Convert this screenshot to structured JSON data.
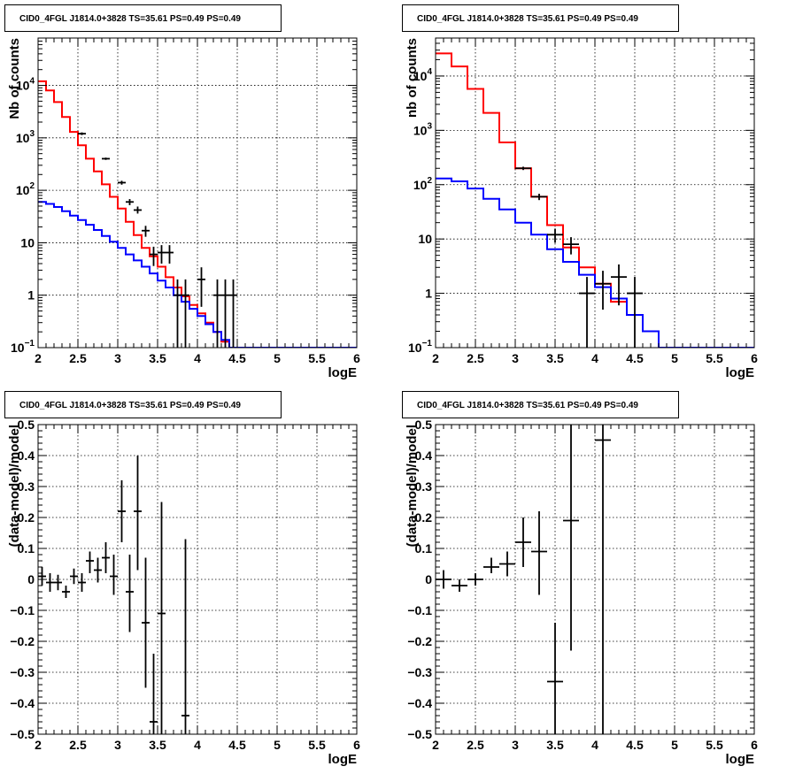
{
  "chart_data": [
    {
      "type": "line",
      "title": "CID0_4FGL J1814.0+3828 TS=35.61 PS=0.49 PS=0.49",
      "xlabel": "logE",
      "ylabel": "Nb of counts",
      "xlim": [
        2,
        6
      ],
      "ylim": [
        0.1,
        80000
      ],
      "yscale": "log",
      "grid": true,
      "x_ticks": [
        "2",
        "2.5",
        "3",
        "3.5",
        "4",
        "4.5",
        "5",
        "5.5",
        "6"
      ],
      "y_ticks": [
        {
          "value": 0.1,
          "label": "10",
          "exp": "−1"
        },
        {
          "value": 1,
          "label": "1",
          "exp": ""
        },
        {
          "value": 10,
          "label": "10",
          "exp": ""
        },
        {
          "value": 100,
          "label": "10",
          "exp": "2"
        },
        {
          "value": 1000,
          "label": "10",
          "exp": "3"
        },
        {
          "value": 10000,
          "label": "10",
          "exp": "4"
        }
      ],
      "bin_edges": [
        2.0,
        2.1,
        2.2,
        2.3,
        2.4,
        2.5,
        2.6,
        2.7,
        2.8,
        2.9,
        3.0,
        3.1,
        3.2,
        3.3,
        3.4,
        3.5,
        3.6,
        3.7,
        3.8,
        3.9,
        4.0,
        4.1,
        4.2,
        4.3,
        4.4,
        4.5,
        4.6,
        4.7,
        4.8,
        4.9,
        5.0,
        5.1,
        5.2,
        5.3,
        5.4,
        5.5,
        5.6,
        5.7,
        5.8,
        5.9,
        6.0
      ],
      "series": [
        {
          "color": "#ff0000",
          "style": "step",
          "values": [
            12000,
            8000,
            4800,
            2500,
            1300,
            720,
            400,
            230,
            130,
            75,
            45,
            25,
            14,
            8,
            5.5,
            3.5,
            2.2,
            1.4,
            0.95,
            0.65,
            0.45,
            0.3,
            0.2,
            0.13,
            0.1,
            0.1,
            0.1,
            0.1,
            0.1,
            0.1,
            0.1,
            0.1,
            0.1,
            0.1,
            0.1,
            0.1,
            0.1,
            0.1,
            0.1,
            0.1
          ]
        },
        {
          "color": "#0000ff",
          "style": "step",
          "values": [
            60,
            55,
            48,
            40,
            33,
            27,
            22,
            17.5,
            13.5,
            10.5,
            8,
            6,
            4.6,
            3.5,
            2.6,
            1.9,
            1.4,
            1.0,
            0.75,
            0.55,
            0.4,
            0.28,
            0.2,
            0.14,
            0.1,
            0.1,
            0.1,
            0.1,
            0.1,
            0.1,
            0.1,
            0.1,
            0.1,
            0.1,
            0.1,
            0.1,
            0.1,
            0.1,
            0.1,
            0.1
          ]
        },
        {
          "color": "#000000",
          "style": "errorbars",
          "points": [
            {
              "x": 2.55,
              "y": 1200,
              "xerr": 0.05,
              "lo": 1130,
              "hi": 1270
            },
            {
              "x": 2.85,
              "y": 400,
              "xerr": 0.05,
              "lo": 380,
              "hi": 420
            },
            {
              "x": 3.05,
              "y": 140,
              "xerr": 0.05,
              "lo": 128,
              "hi": 152
            },
            {
              "x": 3.15,
              "y": 60,
              "xerr": 0.05,
              "lo": 52,
              "hi": 68
            },
            {
              "x": 3.25,
              "y": 42,
              "xerr": 0.05,
              "lo": 36,
              "hi": 49
            },
            {
              "x": 3.35,
              "y": 17,
              "xerr": 0.05,
              "lo": 13,
              "hi": 21
            },
            {
              "x": 3.45,
              "y": 6,
              "xerr": 0.05,
              "lo": 3.6,
              "hi": 8.4
            },
            {
              "x": 3.55,
              "y": 6.5,
              "xerr": 0.05,
              "lo": 4,
              "hi": 9
            },
            {
              "x": 3.65,
              "y": 6.5,
              "xerr": 0.05,
              "lo": 4,
              "hi": 9
            },
            {
              "x": 3.75,
              "y": 1,
              "xerr": 0.05,
              "lo": 0.1,
              "hi": 2
            },
            {
              "x": 3.85,
              "y": 1,
              "xerr": 0.05,
              "lo": 0.1,
              "hi": 2
            },
            {
              "x": 4.05,
              "y": 2,
              "xerr": 0.05,
              "lo": 0.6,
              "hi": 3.4
            },
            {
              "x": 4.25,
              "y": 1,
              "xerr": 0.05,
              "lo": 0.1,
              "hi": 2
            },
            {
              "x": 4.35,
              "y": 1,
              "xerr": 0.05,
              "lo": 0.1,
              "hi": 2
            },
            {
              "x": 4.45,
              "y": 1,
              "xerr": 0.05,
              "lo": 0.1,
              "hi": 2
            }
          ]
        }
      ]
    },
    {
      "type": "line",
      "title": "CID0_4FGL J1814.0+3828 TS=35.61 PS=0.49 PS=0.49",
      "xlabel": "logE",
      "ylabel": "nb of counts",
      "xlim": [
        2,
        6
      ],
      "ylim": [
        0.1,
        50000
      ],
      "yscale": "log",
      "grid": true,
      "x_ticks": [
        "2",
        "2.5",
        "3",
        "3.5",
        "4",
        "4.5",
        "5",
        "5.5",
        "6"
      ],
      "y_ticks": [
        {
          "value": 0.1,
          "label": "10",
          "exp": "−1"
        },
        {
          "value": 1,
          "label": "1",
          "exp": ""
        },
        {
          "value": 10,
          "label": "10",
          "exp": ""
        },
        {
          "value": 100,
          "label": "10",
          "exp": "2"
        },
        {
          "value": 1000,
          "label": "10",
          "exp": "3"
        },
        {
          "value": 10000,
          "label": "10",
          "exp": "4"
        }
      ],
      "bin_edges": [
        2.0,
        2.2,
        2.4,
        2.6,
        2.8,
        3.0,
        3.2,
        3.4,
        3.6,
        3.8,
        4.0,
        4.2,
        4.4,
        4.6,
        4.8,
        5.0,
        5.2,
        5.4,
        5.6,
        5.8,
        6.0
      ],
      "series": [
        {
          "color": "#ff0000",
          "style": "step",
          "values": [
            26000,
            15000,
            5800,
            2100,
            600,
            200,
            60,
            18,
            7,
            3,
            1.5,
            0.7,
            0.4,
            0.2,
            0.1,
            0.1,
            0.1,
            0.1,
            0.1,
            0.1
          ]
        },
        {
          "color": "#0000ff",
          "style": "step",
          "values": [
            130,
            115,
            85,
            55,
            35,
            20,
            12,
            6.5,
            3.8,
            2.2,
            1.3,
            0.8,
            0.4,
            0.2,
            0.1,
            0.1,
            0.1,
            0.1,
            0.1,
            0.1
          ]
        },
        {
          "color": "#000000",
          "style": "errorbars",
          "points": [
            {
              "x": 3.1,
              "y": 200,
              "xerr": 0.1,
              "lo": 186,
              "hi": 214
            },
            {
              "x": 3.3,
              "y": 60,
              "xerr": 0.1,
              "lo": 52,
              "hi": 68
            },
            {
              "x": 3.5,
              "y": 12,
              "xerr": 0.1,
              "lo": 8.5,
              "hi": 15.5
            },
            {
              "x": 3.7,
              "y": 8,
              "xerr": 0.1,
              "lo": 5.2,
              "hi": 10.8
            },
            {
              "x": 3.9,
              "y": 1,
              "xerr": 0.1,
              "lo": 0.1,
              "hi": 2
            },
            {
              "x": 4.1,
              "y": 1.5,
              "xerr": 0.1,
              "lo": 0.5,
              "hi": 2.6
            },
            {
              "x": 4.3,
              "y": 2,
              "xerr": 0.1,
              "lo": 0.6,
              "hi": 3.4
            },
            {
              "x": 4.5,
              "y": 1,
              "xerr": 0.1,
              "lo": 0.1,
              "hi": 2
            }
          ]
        }
      ]
    },
    {
      "type": "scatter",
      "title": "CID0_4FGL J1814.0+3828 TS=35.61 PS=0.49 PS=0.49",
      "xlabel": "logE",
      "ylabel": "(data-model)/model",
      "xlim": [
        2,
        6
      ],
      "ylim": [
        -0.5,
        0.5
      ],
      "yscale": "linear",
      "grid": true,
      "x_ticks": [
        "2",
        "2.5",
        "3",
        "3.5",
        "4",
        "4.5",
        "5",
        "5.5",
        "6"
      ],
      "y_ticks": [
        {
          "value": -0.5,
          "label": "−0.5",
          "exp": ""
        },
        {
          "value": -0.4,
          "label": "−0.4",
          "exp": ""
        },
        {
          "value": -0.3,
          "label": "−0.3",
          "exp": ""
        },
        {
          "value": -0.2,
          "label": "−0.2",
          "exp": ""
        },
        {
          "value": -0.1,
          "label": "−0.1",
          "exp": ""
        },
        {
          "value": 0,
          "label": "0",
          "exp": ""
        },
        {
          "value": 0.1,
          "label": "0.1",
          "exp": ""
        },
        {
          "value": 0.2,
          "label": "0.2",
          "exp": ""
        },
        {
          "value": 0.3,
          "label": "0.3",
          "exp": ""
        },
        {
          "value": 0.4,
          "label": "0.4",
          "exp": ""
        },
        {
          "value": 0.5,
          "label": "0.5",
          "exp": ""
        }
      ],
      "series": [
        {
          "color": "#000000",
          "style": "errorbars",
          "points": [
            {
              "x": 2.05,
              "y": 0.01,
              "xerr": 0.05,
              "lo": -0.02,
              "hi": 0.04
            },
            {
              "x": 2.15,
              "y": -0.01,
              "xerr": 0.05,
              "lo": -0.04,
              "hi": 0.02
            },
            {
              "x": 2.25,
              "y": -0.01,
              "xerr": 0.05,
              "lo": -0.035,
              "hi": 0.015
            },
            {
              "x": 2.35,
              "y": -0.04,
              "xerr": 0.05,
              "lo": -0.06,
              "hi": -0.02
            },
            {
              "x": 2.45,
              "y": 0.01,
              "xerr": 0.05,
              "lo": -0.015,
              "hi": 0.035
            },
            {
              "x": 2.55,
              "y": -0.01,
              "xerr": 0.05,
              "lo": -0.04,
              "hi": 0.02
            },
            {
              "x": 2.65,
              "y": 0.06,
              "xerr": 0.05,
              "lo": 0.02,
              "hi": 0.09
            },
            {
              "x": 2.75,
              "y": 0.03,
              "xerr": 0.05,
              "lo": -0.01,
              "hi": 0.07
            },
            {
              "x": 2.85,
              "y": 0.07,
              "xerr": 0.05,
              "lo": 0.02,
              "hi": 0.12
            },
            {
              "x": 2.95,
              "y": 0.01,
              "xerr": 0.05,
              "lo": -0.05,
              "hi": 0.08
            },
            {
              "x": 3.05,
              "y": 0.22,
              "xerr": 0.05,
              "lo": 0.12,
              "hi": 0.32
            },
            {
              "x": 3.15,
              "y": -0.04,
              "xerr": 0.05,
              "lo": -0.17,
              "hi": 0.08
            },
            {
              "x": 3.25,
              "y": 0.22,
              "xerr": 0.05,
              "lo": 0.03,
              "hi": 0.4
            },
            {
              "x": 3.35,
              "y": -0.14,
              "xerr": 0.05,
              "lo": -0.35,
              "hi": 0.07
            },
            {
              "x": 3.45,
              "y": -0.46,
              "xerr": 0.05,
              "lo": -0.5,
              "hi": -0.24
            },
            {
              "x": 3.55,
              "y": -0.11,
              "xerr": 0.05,
              "lo": -0.5,
              "hi": 0.25
            },
            {
              "x": 3.85,
              "y": -0.44,
              "xerr": 0.05,
              "lo": -0.5,
              "hi": 0.13
            }
          ]
        }
      ]
    },
    {
      "type": "scatter",
      "title": "CID0_4FGL J1814.0+3828 TS=35.61 PS=0.49 PS=0.49",
      "xlabel": "logE",
      "ylabel": "(data-model)/model",
      "xlim": [
        2,
        6
      ],
      "ylim": [
        -0.5,
        0.5
      ],
      "yscale": "linear",
      "grid": true,
      "x_ticks": [
        "2",
        "2.5",
        "3",
        "3.5",
        "4",
        "4.5",
        "5",
        "5.5",
        "6"
      ],
      "y_ticks": [
        {
          "value": -0.5,
          "label": "−0.5",
          "exp": ""
        },
        {
          "value": -0.4,
          "label": "−0.4",
          "exp": ""
        },
        {
          "value": -0.3,
          "label": "−0.3",
          "exp": ""
        },
        {
          "value": -0.2,
          "label": "−0.2",
          "exp": ""
        },
        {
          "value": -0.1,
          "label": "−0.1",
          "exp": ""
        },
        {
          "value": 0,
          "label": "0",
          "exp": ""
        },
        {
          "value": 0.1,
          "label": "0.1",
          "exp": ""
        },
        {
          "value": 0.2,
          "label": "0.2",
          "exp": ""
        },
        {
          "value": 0.3,
          "label": "0.3",
          "exp": ""
        },
        {
          "value": 0.4,
          "label": "0.4",
          "exp": ""
        },
        {
          "value": 0.5,
          "label": "0.5",
          "exp": ""
        }
      ],
      "series": [
        {
          "color": "#000000",
          "style": "errorbars",
          "points": [
            {
              "x": 2.1,
              "y": 0.0,
              "xerr": 0.1,
              "lo": -0.03,
              "hi": 0.03
            },
            {
              "x": 2.3,
              "y": -0.02,
              "xerr": 0.1,
              "lo": -0.04,
              "hi": 0.0
            },
            {
              "x": 2.5,
              "y": 0.0,
              "xerr": 0.1,
              "lo": -0.02,
              "hi": 0.02
            },
            {
              "x": 2.7,
              "y": 0.04,
              "xerr": 0.1,
              "lo": 0.02,
              "hi": 0.07
            },
            {
              "x": 2.9,
              "y": 0.05,
              "xerr": 0.1,
              "lo": 0.01,
              "hi": 0.09
            },
            {
              "x": 3.1,
              "y": 0.12,
              "xerr": 0.1,
              "lo": 0.04,
              "hi": 0.2
            },
            {
              "x": 3.3,
              "y": 0.09,
              "xerr": 0.1,
              "lo": -0.05,
              "hi": 0.22
            },
            {
              "x": 3.5,
              "y": -0.33,
              "xerr": 0.1,
              "lo": -0.5,
              "hi": -0.14
            },
            {
              "x": 3.7,
              "y": 0.19,
              "xerr": 0.1,
              "lo": -0.23,
              "hi": 0.5
            },
            {
              "x": 4.1,
              "y": 0.45,
              "xerr": 0.1,
              "lo": -0.5,
              "hi": 0.5
            }
          ]
        }
      ]
    }
  ]
}
